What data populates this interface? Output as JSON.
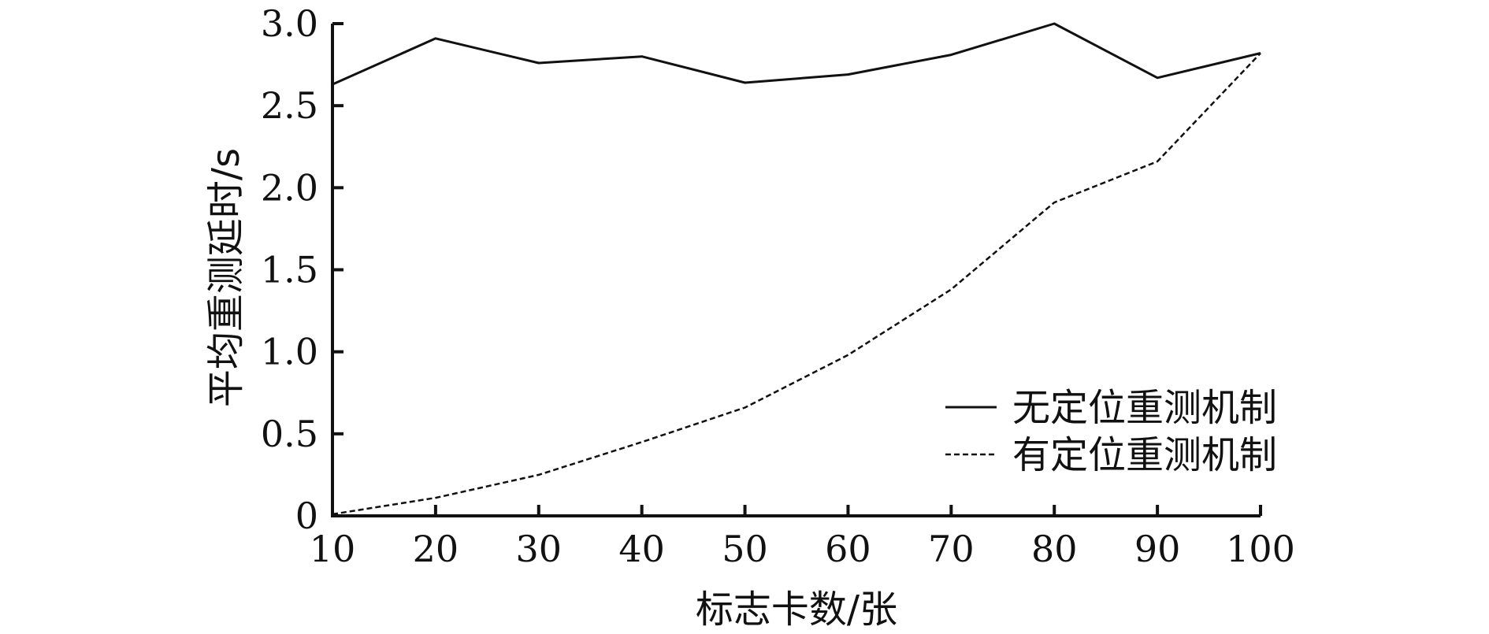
{
  "chart_data": {
    "type": "line",
    "xlabel": "标志卡数/张",
    "ylabel": "平均重测延时/s",
    "x": [
      10,
      20,
      30,
      40,
      50,
      60,
      70,
      80,
      90,
      100
    ],
    "xticks": [
      "10",
      "20",
      "30",
      "40",
      "50",
      "60",
      "70",
      "80",
      "90",
      "100"
    ],
    "yticks": [
      "0",
      "0.5",
      "1.0",
      "1.5",
      "2.0",
      "2.5",
      "3.0"
    ],
    "xlim": [
      10,
      100
    ],
    "ylim": [
      0,
      3.0
    ],
    "grid": false,
    "legend_position": "bottom-right",
    "series": [
      {
        "name": "无定位重测机制",
        "style": "solid",
        "color": "#111111",
        "values": [
          2.63,
          2.91,
          2.76,
          2.8,
          2.64,
          2.69,
          2.81,
          3.0,
          2.67,
          2.82
        ]
      },
      {
        "name": "有定位重测机制",
        "style": "dashed",
        "color": "#111111",
        "values": [
          0.01,
          0.11,
          0.25,
          0.45,
          0.66,
          0.98,
          1.38,
          1.91,
          2.16,
          2.82
        ]
      }
    ]
  }
}
